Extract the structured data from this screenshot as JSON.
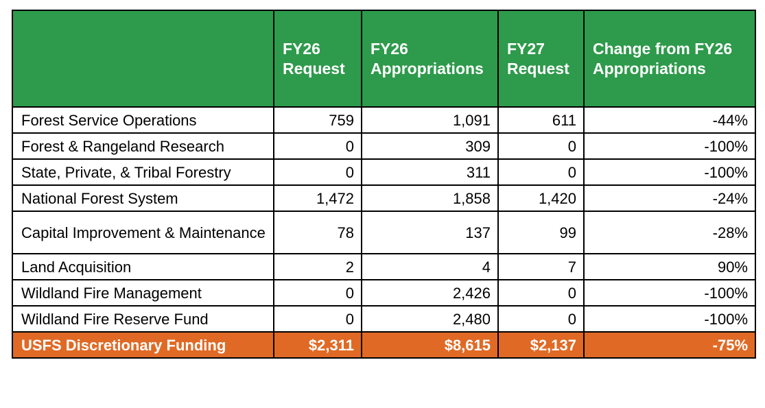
{
  "header": {
    "label_col": "",
    "fy26_request": "FY26 Request",
    "fy26_appropriations": "FY26 Appropriations",
    "fy27_request": "FY27 Request",
    "change": "Change from FY26 Appropriations"
  },
  "rows": [
    {
      "name": "Forest Service Operations",
      "fy26_request": "759",
      "fy26_approp": "1,091",
      "fy27_request": "611",
      "change": "-44%"
    },
    {
      "name": "Forest & Rangeland Research",
      "fy26_request": "0",
      "fy26_approp": "309",
      "fy27_request": "0",
      "change": "-100%"
    },
    {
      "name": "State, Private, & Tribal Forestry",
      "fy26_request": "0",
      "fy26_approp": "311",
      "fy27_request": "0",
      "change": "-100%"
    },
    {
      "name": "National Forest System",
      "fy26_request": "1,472",
      "fy26_approp": "1,858",
      "fy27_request": "1,420",
      "change": "-24%"
    },
    {
      "name": "Capital Improvement & Maintenance",
      "fy26_request": "78",
      "fy26_approp": "137",
      "fy27_request": "99",
      "change": "-28%"
    },
    {
      "name": "Land Acquisition",
      "fy26_request": "2",
      "fy26_approp": "4",
      "fy27_request": "7",
      "change": "90%"
    },
    {
      "name": "Wildland Fire Management",
      "fy26_request": "0",
      "fy26_approp": "2,426",
      "fy27_request": "0",
      "change": "-100%"
    },
    {
      "name": "Wildland Fire Reserve Fund",
      "fy26_request": "0",
      "fy26_approp": "2,480",
      "fy27_request": "0",
      "change": "-100%"
    }
  ],
  "total": {
    "name": "USFS Discretionary Funding",
    "fy26_request": "$2,311",
    "fy26_approp": "$8,615",
    "fy27_request": "$2,137",
    "change": "-75%"
  },
  "colors": {
    "header_bg": "#2e9a4b",
    "total_bg": "#e06a25"
  }
}
